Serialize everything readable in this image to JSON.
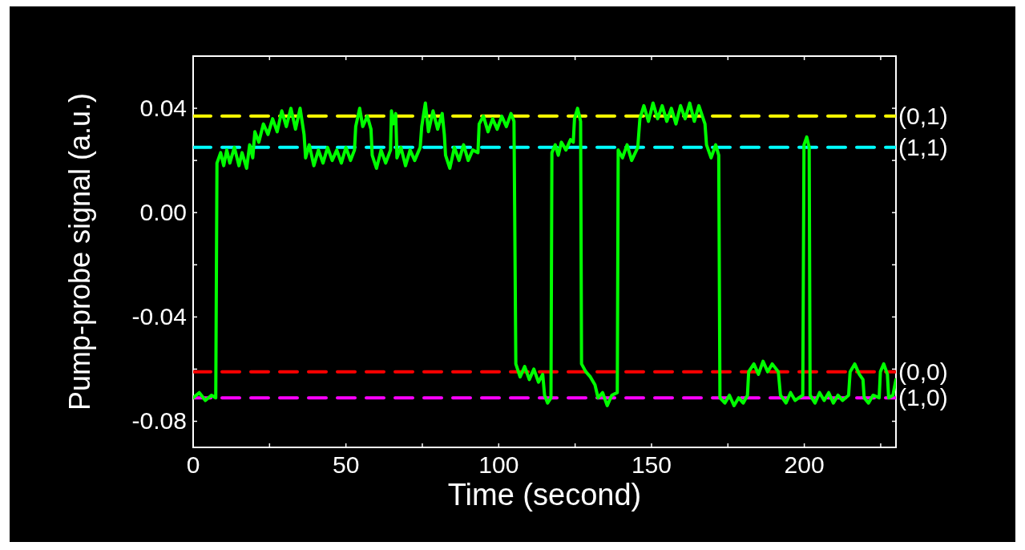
{
  "chart_data": {
    "type": "line",
    "xlabel": "Time (second)",
    "ylabel": "Pump-probe signal (a.u.)",
    "xlim": [
      0,
      230
    ],
    "xticks": [
      0,
      {
        "value": 25,
        "label": null
      },
      50,
      {
        "value": 75,
        "label": null
      },
      100,
      {
        "value": 125,
        "label": null
      },
      150,
      {
        "value": 175,
        "label": null
      },
      200,
      {
        "value": 225,
        "label": null
      }
    ],
    "ylim": [
      -0.09,
      0.06
    ],
    "yticks": [
      -0.08,
      {
        "value": -0.06,
        "label": null
      },
      -0.04,
      {
        "value": -0.02,
        "label": null
      },
      {
        "value": 0,
        "label": "0.00"
      },
      {
        "value": 0.02,
        "label": null
      },
      0.04
    ],
    "grid": false,
    "line_style": "solid",
    "marker": "none",
    "series": [
      {
        "name": "(0,1)",
        "color": "#ffff00",
        "line_style": "dashed",
        "x": [
          0,
          230
        ],
        "values": [
          0.037,
          0.037
        ]
      },
      {
        "name": "(1,1)",
        "color": "#00ffff",
        "line_style": "dashed",
        "x": [
          0,
          230
        ],
        "values": [
          0.025,
          0.025
        ]
      },
      {
        "name": "(0,0)",
        "color": "#ff0000",
        "line_style": "dashed",
        "x": [
          0,
          230
        ],
        "values": [
          -0.061,
          -0.061
        ]
      },
      {
        "name": "(1,0)",
        "color": "#ff00ff",
        "line_style": "dashed",
        "x": [
          0,
          230
        ],
        "values": [
          -0.071,
          -0.071
        ]
      },
      {
        "color": "#00ff00",
        "x": [
          0,
          2,
          4,
          6,
          7.4,
          7.8,
          9,
          10,
          11,
          12,
          13.5,
          15,
          16,
          17.5,
          18.5,
          19.5,
          20.2,
          21.5,
          23,
          24.5,
          26,
          27.5,
          29,
          30.5,
          32,
          33.5,
          35,
          36.3,
          36.8,
          38,
          39.5,
          41,
          42.5,
          44,
          45.5,
          47,
          48.5,
          50,
          51.5,
          52.8,
          53.2,
          54.5,
          55.5,
          57,
          58.2,
          58.6,
          60,
          61.5,
          63,
          64.6,
          64.9,
          65.5,
          66.3,
          66.7,
          68,
          69.5,
          71,
          72.5,
          74.3,
          74.8,
          76,
          77,
          78.5,
          80,
          81.5,
          82.2,
          82.6,
          84,
          85.5,
          87,
          88.5,
          90,
          91.5,
          93.2,
          93.6,
          95,
          96.5,
          98,
          99.5,
          101,
          102.5,
          104,
          105,
          105.6,
          107,
          108.5,
          110,
          111.5,
          113,
          114.4,
          115,
          116,
          117.1,
          117.4,
          118.5,
          119.5,
          120.5,
          122,
          123.5,
          124.4,
          124.8,
          125.8,
          126.8,
          127.1,
          128.5,
          130,
          131.5,
          132.5,
          134,
          135.5,
          137,
          138.8,
          139.1,
          140.5,
          142,
          143.5,
          145.5,
          146.2,
          147.5,
          149,
          150.5,
          152,
          153.5,
          155,
          156.5,
          158,
          159.5,
          161,
          162.5,
          164,
          165.5,
          167.5,
          168,
          169.5,
          171,
          172,
          172.4,
          174,
          175.5,
          177,
          178.5,
          180,
          181.4,
          181.8,
          183.5,
          185,
          186.5,
          188,
          189.5,
          191.5,
          192.2,
          194,
          195.5,
          197,
          199.5,
          199.9,
          200.8,
          201.6,
          201.9,
          203.5,
          205,
          206.5,
          208,
          209.5,
          211,
          212.5,
          214.5,
          215,
          216.5,
          218,
          219.2,
          219.6,
          221,
          222.5,
          224.5,
          224.9,
          226,
          227.2,
          227.6,
          229,
          230
        ],
        "values": [
          -0.071,
          -0.069,
          -0.072,
          -0.07,
          -0.071,
          0.019,
          0.023,
          0.018,
          0.024,
          0.019,
          0.025,
          0.018,
          0.023,
          0.017,
          0.026,
          0.021,
          0.031,
          0.027,
          0.034,
          0.03,
          0.036,
          0.031,
          0.039,
          0.033,
          0.04,
          0.032,
          0.04,
          0.03,
          0.021,
          0.026,
          0.018,
          0.024,
          0.019,
          0.025,
          0.02,
          0.024,
          0.019,
          0.025,
          0.02,
          0.024,
          0.033,
          0.04,
          0.033,
          0.037,
          0.032,
          0.022,
          0.017,
          0.024,
          0.019,
          0.024,
          0.039,
          0.034,
          0.038,
          0.021,
          0.025,
          0.018,
          0.024,
          0.02,
          0.025,
          0.033,
          0.042,
          0.031,
          0.039,
          0.032,
          0.038,
          0.03,
          0.022,
          0.017,
          0.025,
          0.02,
          0.026,
          0.02,
          0.024,
          0.023,
          0.034,
          0.037,
          0.031,
          0.036,
          0.032,
          0.037,
          0.033,
          0.038,
          0.035,
          -0.058,
          -0.063,
          -0.059,
          -0.064,
          -0.06,
          -0.065,
          -0.062,
          -0.07,
          -0.073,
          -0.071,
          0.023,
          0.026,
          0.022,
          0.027,
          0.024,
          0.028,
          0.027,
          0.036,
          0.04,
          0.035,
          -0.058,
          -0.061,
          -0.063,
          -0.066,
          -0.071,
          -0.069,
          -0.074,
          -0.07,
          -0.069,
          0.024,
          0.021,
          0.026,
          0.02,
          0.025,
          0.036,
          0.041,
          0.035,
          0.042,
          0.036,
          0.041,
          0.035,
          0.04,
          0.034,
          0.041,
          0.036,
          0.042,
          0.035,
          0.041,
          0.034,
          0.026,
          0.021,
          0.026,
          0.022,
          -0.071,
          -0.073,
          -0.07,
          -0.074,
          -0.071,
          -0.073,
          -0.07,
          -0.061,
          -0.058,
          -0.062,
          -0.057,
          -0.061,
          -0.058,
          -0.061,
          -0.07,
          -0.073,
          -0.069,
          -0.072,
          -0.07,
          0.026,
          0.029,
          0.025,
          -0.07,
          -0.073,
          -0.069,
          -0.072,
          -0.069,
          -0.073,
          -0.07,
          -0.072,
          -0.07,
          -0.061,
          -0.058,
          -0.062,
          -0.064,
          -0.071,
          -0.073,
          -0.07,
          -0.071,
          -0.061,
          -0.058,
          -0.062,
          -0.071,
          -0.07,
          -0.064
        ]
      }
    ]
  }
}
